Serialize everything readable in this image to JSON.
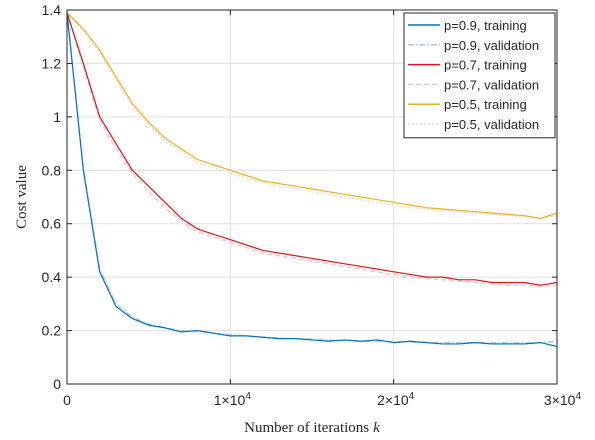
{
  "chart_data": {
    "type": "line",
    "xlabel": "Number of iterations",
    "xlabel_var": "k",
    "ylabel": "Cost value",
    "xlim": [
      0,
      30000
    ],
    "ylim": [
      0,
      1.4
    ],
    "xticks": [
      {
        "value": 0,
        "label": "0"
      },
      {
        "value": 10000,
        "label": "1×10",
        "exp": "4"
      },
      {
        "value": 20000,
        "label": "2×10",
        "exp": "4"
      },
      {
        "value": 30000,
        "label": "3×10",
        "exp": "4"
      }
    ],
    "yticks": [
      {
        "value": 0,
        "label": "0"
      },
      {
        "value": 0.2,
        "label": "0.2"
      },
      {
        "value": 0.4,
        "label": "0.4"
      },
      {
        "value": 0.6,
        "label": "0.6"
      },
      {
        "value": 0.8,
        "label": "0.8"
      },
      {
        "value": 1.0,
        "label": "1"
      },
      {
        "value": 1.2,
        "label": "1.2"
      },
      {
        "value": 1.4,
        "label": "1.4"
      }
    ],
    "grid": true,
    "legend_position": "top-right",
    "x": [
      0,
      1000,
      2000,
      3000,
      4000,
      5000,
      6000,
      7000,
      8000,
      9000,
      10000,
      11000,
      12000,
      13000,
      14000,
      15000,
      16000,
      17000,
      18000,
      19000,
      20000,
      21000,
      22000,
      23000,
      24000,
      25000,
      26000,
      27000,
      28000,
      29000,
      30000
    ],
    "series": [
      {
        "name": "p=0.9, training",
        "color": "#0072BD",
        "dash": "solid",
        "values": [
          1.39,
          0.8,
          0.42,
          0.29,
          0.245,
          0.22,
          0.21,
          0.195,
          0.2,
          0.19,
          0.18,
          0.18,
          0.175,
          0.17,
          0.17,
          0.165,
          0.16,
          0.165,
          0.16,
          0.165,
          0.155,
          0.16,
          0.155,
          0.15,
          0.15,
          0.155,
          0.15,
          0.15,
          0.15,
          0.155,
          0.14
        ]
      },
      {
        "name": "p=0.9, validation",
        "color": "#A8C8E8",
        "dash": "dashdot",
        "values": [
          1.39,
          0.81,
          0.43,
          0.3,
          0.25,
          0.225,
          0.21,
          0.2,
          0.195,
          0.19,
          0.185,
          0.18,
          0.175,
          0.172,
          0.17,
          0.168,
          0.165,
          0.163,
          0.16,
          0.16,
          0.158,
          0.157,
          0.156,
          0.155,
          0.155,
          0.155,
          0.154,
          0.154,
          0.154,
          0.155,
          0.16
        ]
      },
      {
        "name": "p=0.7, training",
        "color": "#D9141C",
        "dash": "solid",
        "values": [
          1.39,
          1.2,
          1.0,
          0.9,
          0.8,
          0.74,
          0.68,
          0.62,
          0.58,
          0.56,
          0.54,
          0.52,
          0.5,
          0.49,
          0.48,
          0.47,
          0.46,
          0.45,
          0.44,
          0.43,
          0.42,
          0.41,
          0.4,
          0.4,
          0.39,
          0.39,
          0.38,
          0.38,
          0.38,
          0.37,
          0.38
        ]
      },
      {
        "name": "p=0.7, validation",
        "color": "#F0C4C4",
        "dash": "dashed",
        "values": [
          1.39,
          1.19,
          0.99,
          0.88,
          0.79,
          0.72,
          0.66,
          0.61,
          0.57,
          0.55,
          0.53,
          0.51,
          0.49,
          0.48,
          0.47,
          0.46,
          0.45,
          0.44,
          0.43,
          0.42,
          0.41,
          0.4,
          0.395,
          0.39,
          0.385,
          0.38,
          0.375,
          0.37,
          0.37,
          0.365,
          0.37
        ]
      },
      {
        "name": "p=0.5, training",
        "color": "#EDB120",
        "dash": "solid",
        "values": [
          1.39,
          1.33,
          1.25,
          1.15,
          1.05,
          0.98,
          0.92,
          0.88,
          0.84,
          0.82,
          0.8,
          0.78,
          0.76,
          0.75,
          0.74,
          0.73,
          0.72,
          0.71,
          0.7,
          0.69,
          0.68,
          0.67,
          0.66,
          0.655,
          0.65,
          0.645,
          0.64,
          0.635,
          0.63,
          0.62,
          0.64
        ]
      },
      {
        "name": "p=0.5, validation",
        "color": "#F2D3C8",
        "dash": "dotted",
        "values": [
          1.39,
          1.32,
          1.24,
          1.14,
          1.04,
          0.97,
          0.91,
          0.87,
          0.83,
          0.81,
          0.79,
          0.77,
          0.755,
          0.74,
          0.73,
          0.72,
          0.71,
          0.7,
          0.69,
          0.68,
          0.67,
          0.66,
          0.655,
          0.65,
          0.645,
          0.64,
          0.635,
          0.63,
          0.625,
          0.62,
          0.63
        ]
      }
    ]
  }
}
